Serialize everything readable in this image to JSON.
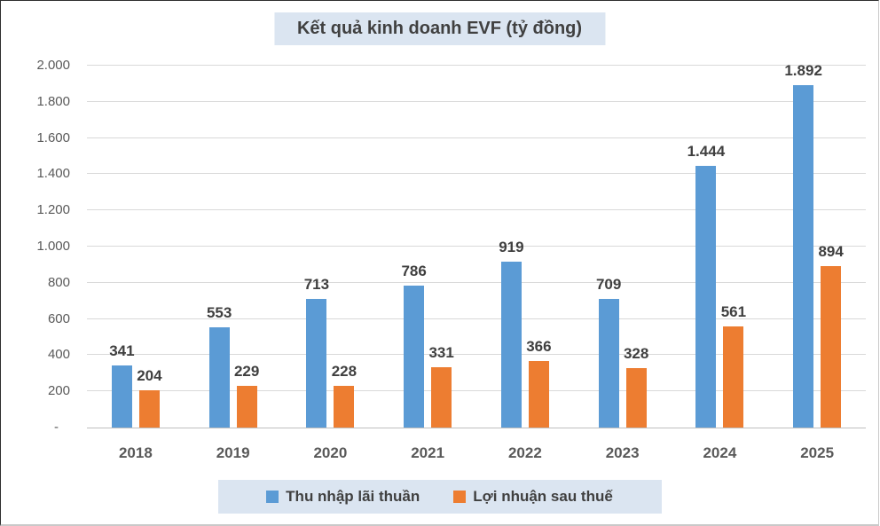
{
  "title": "Kết quả kinh doanh EVF (tỷ đồng)",
  "chart_data": {
    "type": "bar",
    "title": "Kết quả kinh doanh EVF (tỷ đồng)",
    "categories": [
      "2018",
      "2019",
      "2020",
      "2021",
      "2022",
      "2023",
      "2024",
      "2025"
    ],
    "series": [
      {
        "name": "Thu nhập lãi thuần",
        "color": "#5B9BD5",
        "values": [
          341,
          553,
          713,
          786,
          919,
          709,
          1444,
          1892
        ],
        "labels": [
          "341",
          "553",
          "713",
          "786",
          "919",
          "709",
          "1.444",
          "1.892"
        ]
      },
      {
        "name": "Lợi nhuận sau thuế",
        "color": "#ED7D31",
        "values": [
          204,
          229,
          228,
          331,
          366,
          328,
          561,
          894
        ],
        "labels": [
          "204",
          "229",
          "228",
          "331",
          "366",
          "328",
          "561",
          "894"
        ]
      }
    ],
    "xlabel": "",
    "ylabel": "",
    "ylim": [
      0,
      2000
    ],
    "ytick_labels_top_to_bottom": [
      "2.000",
      "1.800",
      "1.600",
      "1.400",
      "1.200",
      "1.000",
      "800",
      "600",
      "400",
      "200",
      "-"
    ],
    "grid": true,
    "legend_position": "bottom"
  },
  "colors": {
    "series_blue": "#5B9BD5",
    "series_orange": "#ED7D31",
    "title_background": "#dbe5f1",
    "legend_background": "#dbe5f1",
    "gridline": "#d9d9d9",
    "axis_text": "#595959",
    "label_text": "#3f3f3f"
  }
}
